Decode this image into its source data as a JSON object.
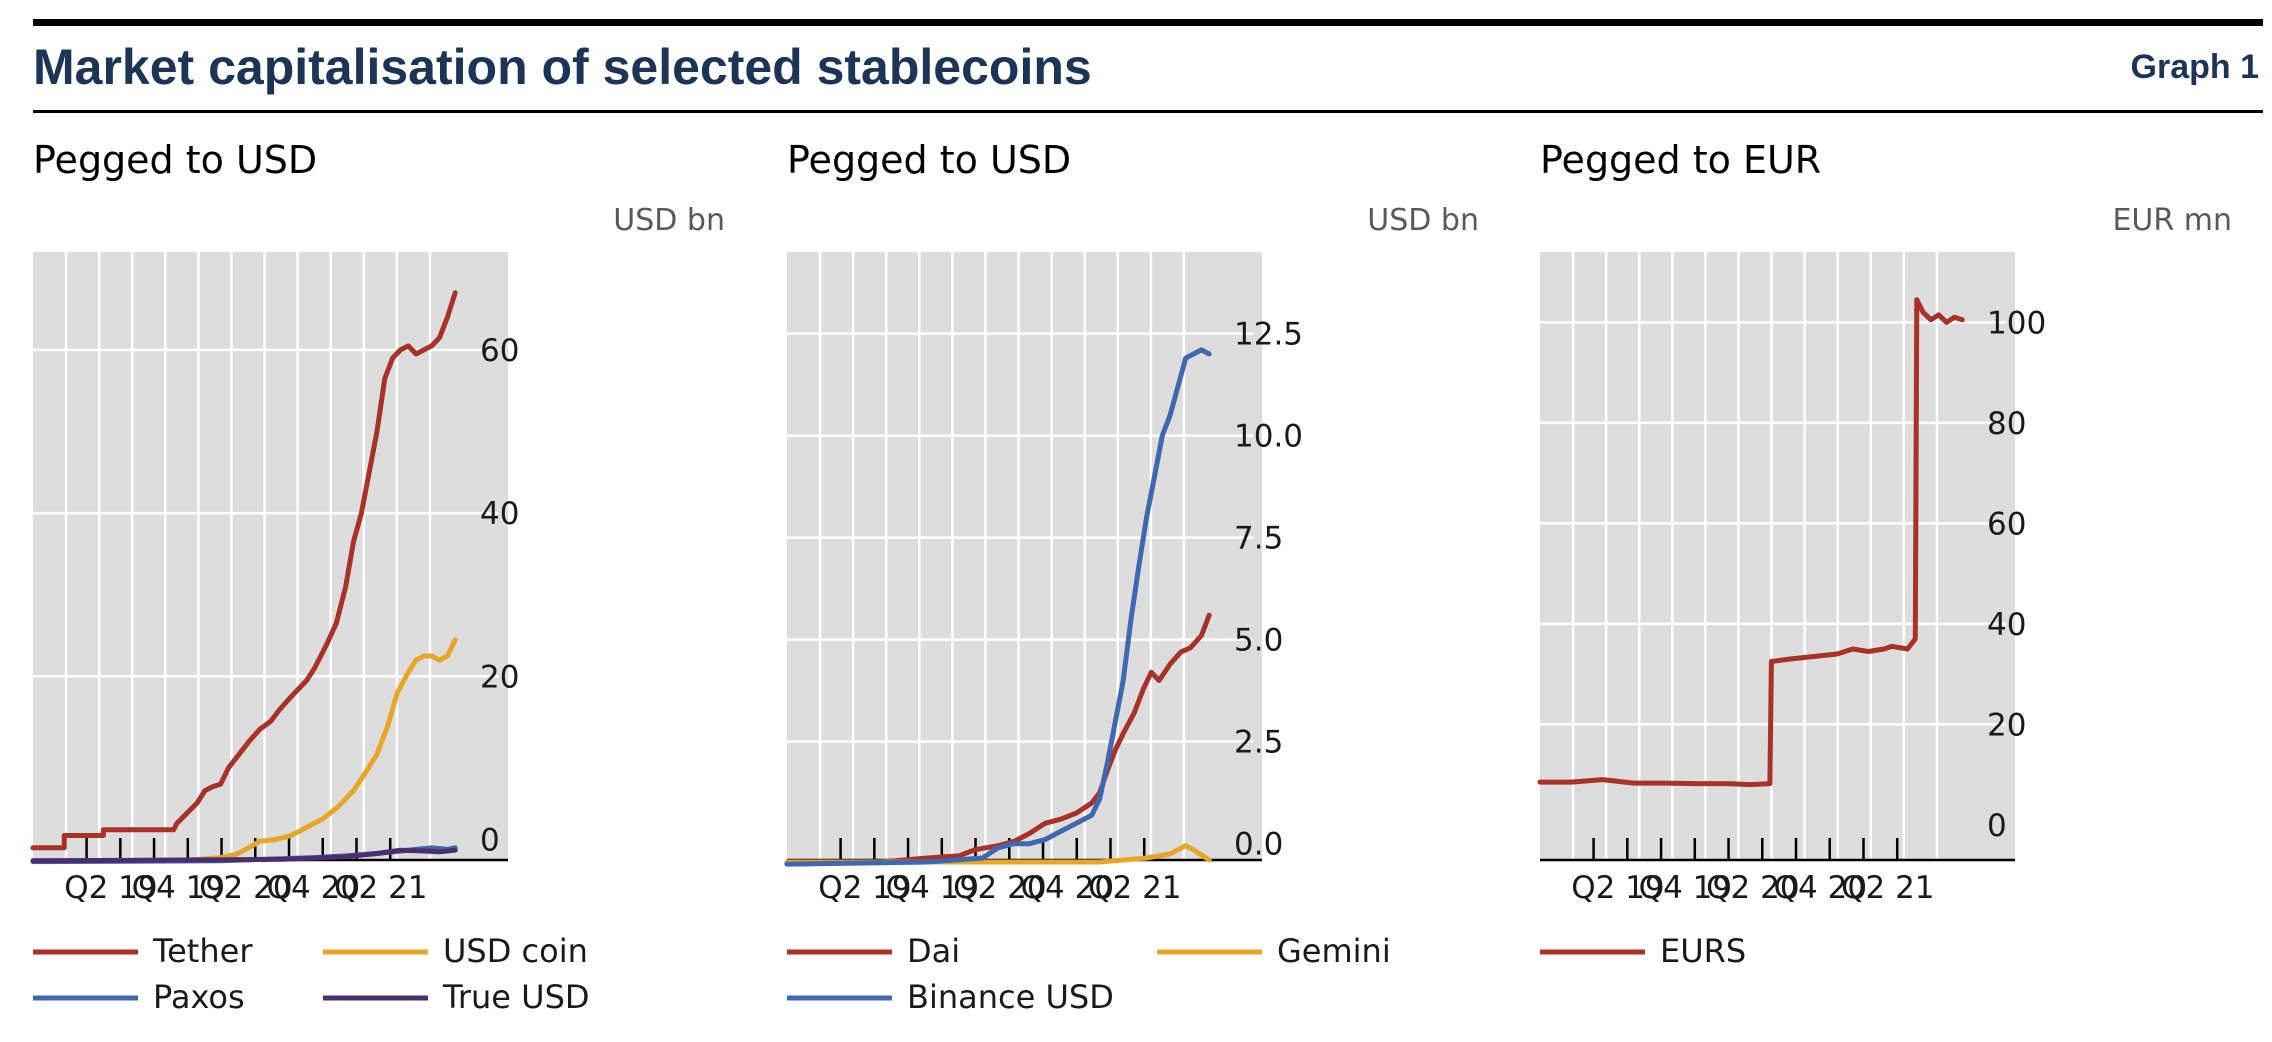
{
  "header": {
    "title": "Market capitalisation of selected stablecoins",
    "graph_label": "Graph 1"
  },
  "colors": {
    "title": "#1c3557",
    "plot_background": "#dddddd",
    "gridlines": "#ffffff",
    "red": "#a83228",
    "orange": "#e8a628",
    "blue": "#3f68b1",
    "purple": "#4b2e6e"
  },
  "chart_data": [
    {
      "type": "line",
      "title": "Pegged to USD",
      "unit": "USD bn",
      "ylim": [
        -2.5,
        72
      ],
      "yticks": [
        0,
        20,
        40,
        60
      ],
      "ytick_labels": [
        "0",
        "20",
        "40",
        "60"
      ],
      "xlim": [
        2019.0,
        2021.75
      ],
      "xtick_labels": [
        "Q2 19",
        "Q4 19",
        "Q2 20",
        "Q4 20",
        "Q2 21"
      ],
      "grid": true,
      "legend_position": "bottom",
      "series": [
        {
          "name": "Tether",
          "color": "red",
          "x": [
            2019.0,
            2019.2,
            2019.2,
            2019.45,
            2019.45,
            2019.9,
            2019.9,
            2019.92,
            2020.05,
            2020.1,
            2020.15,
            2020.2,
            2020.25,
            2020.32,
            2020.38,
            2020.45,
            2020.52,
            2020.58,
            2020.65,
            2020.7,
            2020.75,
            2020.8,
            2020.88,
            2020.94,
            2021.0,
            2021.05,
            2021.1,
            2021.15,
            2021.2,
            2021.25,
            2021.3,
            2021.35,
            2021.4,
            2021.45,
            2021.5,
            2021.55,
            2021.6,
            2021.65,
            2021.7
          ],
          "y": [
            -1,
            -1,
            0.5,
            0.5,
            1.2,
            1.2,
            1.2,
            2.0,
            4.5,
            6.0,
            6.5,
            6.8,
            8.8,
            10.5,
            12.0,
            13.5,
            14.5,
            16.0,
            17.5,
            18.5,
            19.5,
            21.0,
            24.0,
            26.5,
            31.0,
            36.5,
            40.0,
            45.0,
            50.0,
            56.5,
            59.0,
            60.0,
            60.5,
            59.5,
            60.0,
            60.5,
            61.5,
            64.0,
            67.0
          ]
        },
        {
          "name": "USD coin",
          "color": "orange",
          "x": [
            2019.0,
            2019.5,
            2020.0,
            2020.2,
            2020.3,
            2020.38,
            2020.45,
            2020.55,
            2020.65,
            2020.75,
            2020.85,
            2020.95,
            2021.05,
            2021.12,
            2021.2,
            2021.27,
            2021.33,
            2021.4,
            2021.45,
            2021.5,
            2021.55,
            2021.6,
            2021.65,
            2021.7
          ],
          "y": [
            -2.6,
            -2.6,
            -2.5,
            -2.2,
            -1.8,
            -1.0,
            -0.2,
            0.0,
            0.5,
            1.5,
            2.5,
            4.0,
            6.0,
            8.0,
            10.5,
            14.0,
            18.0,
            20.5,
            22.0,
            22.5,
            22.5,
            22.0,
            22.5,
            24.5
          ]
        },
        {
          "name": "Paxos",
          "color": "blue",
          "x": [
            2019.0,
            2020.2,
            2020.5,
            2020.8,
            2021.0,
            2021.2,
            2021.35,
            2021.45,
            2021.55,
            2021.65,
            2021.7
          ],
          "y": [
            -2.7,
            -2.6,
            -2.4,
            -2.2,
            -2.0,
            -1.7,
            -1.4,
            -1.2,
            -1.0,
            -1.2,
            -1.0
          ]
        },
        {
          "name": "True USD",
          "color": "purple",
          "x": [
            2019.0,
            2020.0,
            2020.6,
            2021.0,
            2021.2,
            2021.35,
            2021.5,
            2021.6,
            2021.7
          ],
          "y": [
            -2.6,
            -2.5,
            -2.4,
            -2.1,
            -1.7,
            -1.3,
            -1.4,
            -1.5,
            -1.3
          ]
        }
      ]
    },
    {
      "type": "line",
      "title": "Pegged to USD",
      "unit": "USD bn",
      "ylim": [
        -0.4,
        14.5
      ],
      "yticks": [
        0,
        2.5,
        5,
        7.5,
        10,
        12.5
      ],
      "ytick_labels": [
        "0.0",
        "2.5",
        "5.0",
        "7.5",
        "10.0",
        "12.5"
      ],
      "xlim": [
        2019.0,
        2021.75
      ],
      "xtick_labels": [
        "Q2 19",
        "Q4 19",
        "Q2 20",
        "Q4 20",
        "Q2 21"
      ],
      "grid": true,
      "legend_position": "bottom",
      "series": [
        {
          "name": "Dai",
          "color": "red",
          "x": [
            2019.0,
            2019.6,
            2019.9,
            2020.1,
            2020.2,
            2020.35,
            2020.45,
            2020.55,
            2020.65,
            2020.75,
            2020.85,
            2020.95,
            2021.0,
            2021.05,
            2021.1,
            2021.15,
            2021.22,
            2021.28,
            2021.33,
            2021.38,
            2021.45,
            2021.52,
            2021.58,
            2021.65,
            2021.7
          ],
          "y": [
            -0.5,
            -0.45,
            -0.35,
            -0.3,
            -0.15,
            -0.05,
            0.05,
            0.25,
            0.5,
            0.6,
            0.75,
            1.0,
            1.25,
            1.8,
            2.3,
            2.7,
            3.2,
            3.8,
            4.2,
            4.0,
            4.4,
            4.7,
            4.8,
            5.1,
            5.6
          ]
        },
        {
          "name": "Gemini",
          "color": "orange",
          "x": [
            2019.0,
            2020.0,
            2020.5,
            2021.0,
            2021.3,
            2021.45,
            2021.55,
            2021.6,
            2021.7
          ],
          "y": [
            -0.45,
            -0.45,
            -0.45,
            -0.45,
            -0.35,
            -0.25,
            -0.05,
            -0.15,
            -0.4
          ]
        },
        {
          "name": "Binance USD",
          "color": "blue",
          "x": [
            2019.0,
            2019.9,
            2020.25,
            2020.35,
            2020.45,
            2020.55,
            2020.65,
            2020.75,
            2020.85,
            2020.95,
            2021.0,
            2021.05,
            2021.1,
            2021.15,
            2021.2,
            2021.25,
            2021.3,
            2021.35,
            2021.4,
            2021.45,
            2021.5,
            2021.55,
            2021.6,
            2021.65,
            2021.7
          ],
          "y": [
            -0.5,
            -0.45,
            -0.35,
            -0.1,
            0.0,
            0.0,
            0.1,
            0.3,
            0.5,
            0.7,
            1.1,
            2.0,
            3.0,
            4.0,
            5.5,
            6.8,
            8.0,
            9.0,
            10.0,
            10.5,
            11.2,
            11.9,
            12.0,
            12.1,
            12.0
          ]
        }
      ]
    },
    {
      "type": "line",
      "title": "Pegged to EUR",
      "unit": "EUR mn",
      "ylim": [
        -7,
        114
      ],
      "yticks": [
        0,
        20,
        40,
        60,
        80,
        100
      ],
      "ytick_labels": [
        "0",
        "20",
        "40",
        "60",
        "80",
        "100"
      ],
      "xlim": [
        2019.0,
        2021.75
      ],
      "xtick_labels": [
        "Q2 19",
        "Q4 19",
        "Q2 20",
        "Q4 20",
        "Q2 21"
      ],
      "grid": true,
      "legend_position": "bottom",
      "series": [
        {
          "name": "EURS",
          "color": "red",
          "x": [
            2019.0,
            2019.2,
            2019.4,
            2019.6,
            2019.8,
            2020.0,
            2020.2,
            2020.35,
            2020.47,
            2020.48,
            2020.6,
            2020.75,
            2020.9,
            2021.0,
            2021.1,
            2021.2,
            2021.25,
            2021.35,
            2021.4,
            2021.41,
            2021.45,
            2021.5,
            2021.55,
            2021.6,
            2021.65,
            2021.7
          ],
          "y": [
            8.5,
            8.5,
            9.0,
            8.3,
            8.3,
            8.2,
            8.2,
            8.0,
            8.2,
            32.5,
            33.0,
            33.5,
            34.0,
            35.0,
            34.5,
            35.0,
            35.5,
            35.0,
            37.0,
            104.5,
            102.0,
            100.5,
            101.5,
            100.0,
            101.0,
            100.5
          ]
        }
      ]
    }
  ]
}
